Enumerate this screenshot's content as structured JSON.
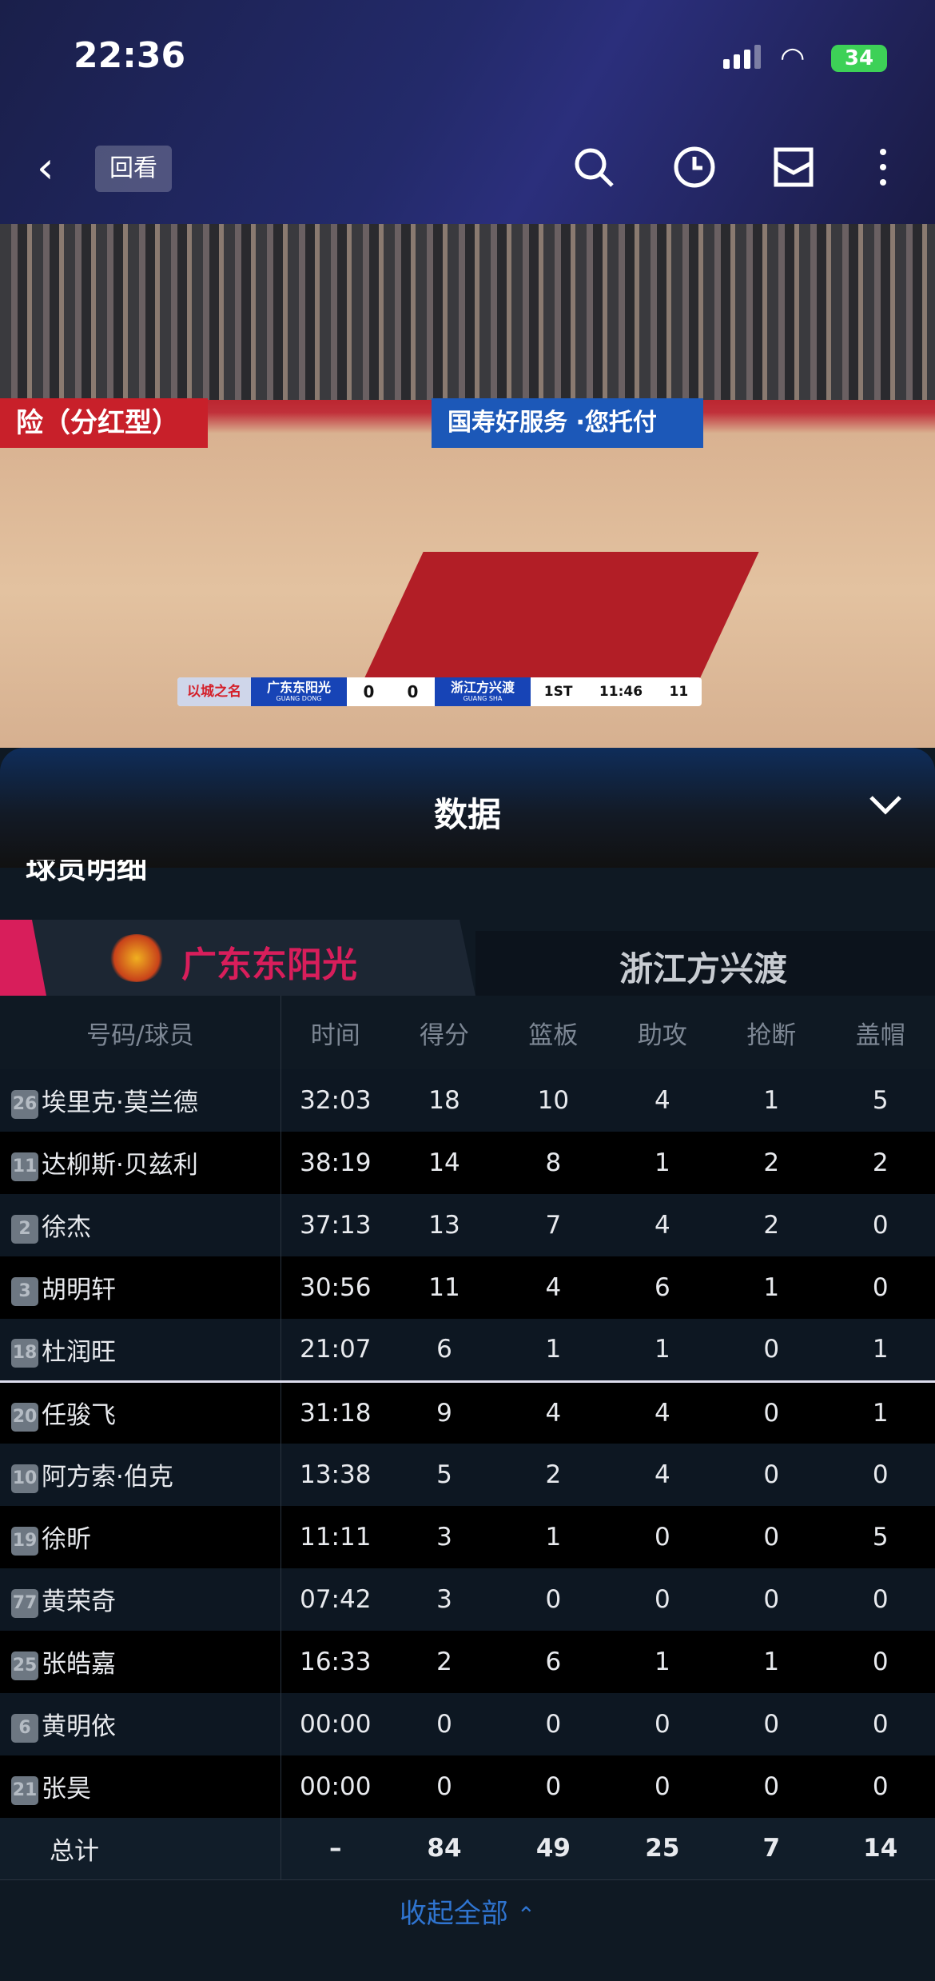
{
  "status_bar": {
    "time": "22:36",
    "battery": "34"
  },
  "nav": {
    "replay_label": "回看",
    "icons": [
      "back-icon",
      "search-icon",
      "history-clock-icon",
      "mailbox-icon",
      "more-icon"
    ]
  },
  "video": {
    "ad_left": "险（分红型）",
    "ad_mid": "国寿好服务 ·您托付",
    "scorebug": {
      "logo": "以城之名",
      "home": "广东东阳光",
      "home_en": "GUANG DONG",
      "home_score": "0",
      "away_score": "0",
      "away": "浙江方兴渡",
      "away_en": "GUANG SHA",
      "quarter": "1ST",
      "clock": "11:46",
      "shot_clock": "11"
    }
  },
  "panel": {
    "title": "数据",
    "section": "球员明细"
  },
  "teams": {
    "home": "广东东阳光",
    "away": "浙江方兴渡",
    "active": "home",
    "accent": "#d81e5b"
  },
  "columns": [
    "号码/球员",
    "时间",
    "得分",
    "篮板",
    "助攻",
    "抢断",
    "盖帽"
  ],
  "players": [
    {
      "no": "26",
      "name": "埃里克·莫兰德",
      "time": "32:03",
      "pts": "18",
      "reb": "10",
      "ast": "4",
      "stl": "1",
      "blk": "5"
    },
    {
      "no": "11",
      "name": "达柳斯·贝兹利",
      "time": "38:19",
      "pts": "14",
      "reb": "8",
      "ast": "1",
      "stl": "2",
      "blk": "2"
    },
    {
      "no": "2",
      "name": "徐杰",
      "time": "37:13",
      "pts": "13",
      "reb": "7",
      "ast": "4",
      "stl": "2",
      "blk": "0"
    },
    {
      "no": "3",
      "name": "胡明轩",
      "time": "30:56",
      "pts": "11",
      "reb": "4",
      "ast": "6",
      "stl": "1",
      "blk": "0"
    },
    {
      "no": "18",
      "name": "杜润旺",
      "time": "21:07",
      "pts": "6",
      "reb": "1",
      "ast": "1",
      "stl": "0",
      "blk": "1"
    },
    {
      "no": "20",
      "name": "任骏飞",
      "time": "31:18",
      "pts": "9",
      "reb": "4",
      "ast": "4",
      "stl": "0",
      "blk": "1"
    },
    {
      "no": "10",
      "name": "阿方索·伯克",
      "time": "13:38",
      "pts": "5",
      "reb": "2",
      "ast": "4",
      "stl": "0",
      "blk": "0"
    },
    {
      "no": "19",
      "name": "徐昕",
      "time": "11:11",
      "pts": "3",
      "reb": "1",
      "ast": "0",
      "stl": "0",
      "blk": "5"
    },
    {
      "no": "77",
      "name": "黄荣奇",
      "time": "07:42",
      "pts": "3",
      "reb": "0",
      "ast": "0",
      "stl": "0",
      "blk": "0"
    },
    {
      "no": "25",
      "name": "张皓嘉",
      "time": "16:33",
      "pts": "2",
      "reb": "6",
      "ast": "1",
      "stl": "1",
      "blk": "0"
    },
    {
      "no": "6",
      "name": "黄明依",
      "time": "00:00",
      "pts": "0",
      "reb": "0",
      "ast": "0",
      "stl": "0",
      "blk": "0"
    },
    {
      "no": "21",
      "name": "张昊",
      "time": "00:00",
      "pts": "0",
      "reb": "0",
      "ast": "0",
      "stl": "0",
      "blk": "0"
    }
  ],
  "totals": {
    "label": "总计",
    "time": "–",
    "pts": "84",
    "reb": "49",
    "ast": "25",
    "stl": "7",
    "blk": "14"
  },
  "collapse_label": "收起全部"
}
